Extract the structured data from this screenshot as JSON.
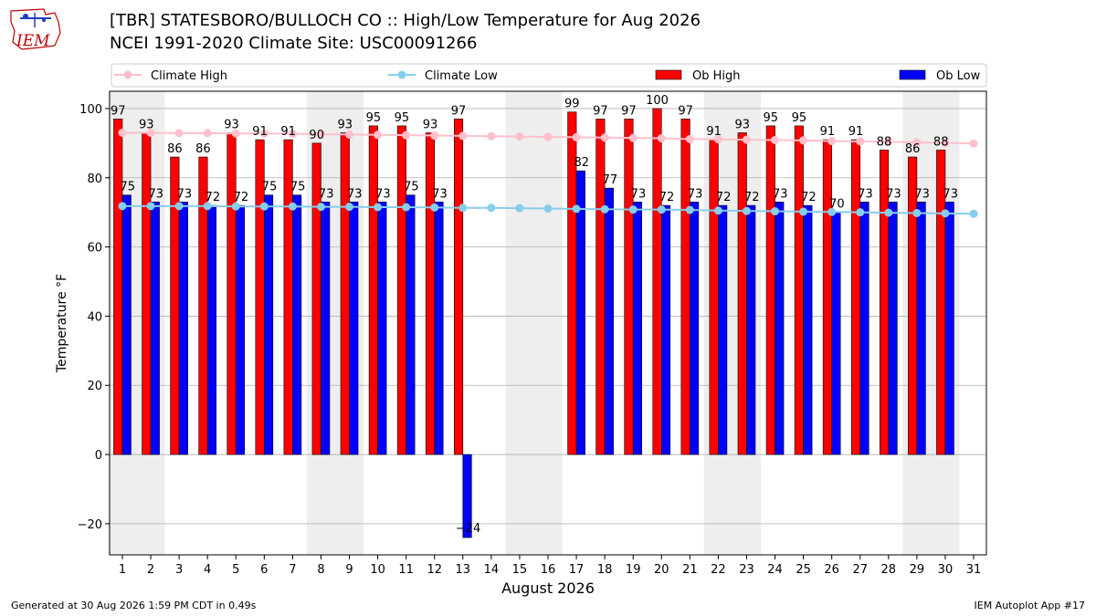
{
  "header": {
    "title": "[TBR] STATESBORO/BULLOCH CO :: High/Low Temperature for Aug 2026",
    "subtitle": "NCEI 1991-2020 Climate Site: USC00091266",
    "logo_text": "IEM"
  },
  "footer": {
    "generated": "Generated at 30 Aug 2026 1:59 PM CDT in 0.49s",
    "app": "IEM Autoplot App #17"
  },
  "colors": {
    "ob_high": "#ff0000",
    "ob_low": "#0000ff",
    "climate_high": "#ffc0cb",
    "climate_low": "#87ceeb",
    "weekend_band": "#eeeeee",
    "grid": "#b0b0b0"
  },
  "chart_data": {
    "type": "bar",
    "xlabel": "August 2026",
    "ylabel": "Temperature °F",
    "ylim": [
      -29,
      105
    ],
    "yticks": [
      -20,
      0,
      20,
      40,
      60,
      80,
      100
    ],
    "ytick_labels": [
      "−20",
      "0",
      "20",
      "40",
      "60",
      "80",
      "100"
    ],
    "x": [
      1,
      2,
      3,
      4,
      5,
      6,
      7,
      8,
      9,
      10,
      11,
      12,
      13,
      14,
      15,
      16,
      17,
      18,
      19,
      20,
      21,
      22,
      23,
      24,
      25,
      26,
      27,
      28,
      29,
      30,
      31
    ],
    "weekend_bands": [
      [
        1,
        2
      ],
      [
        8,
        9
      ],
      [
        15,
        16
      ],
      [
        22,
        23
      ],
      [
        29,
        30
      ]
    ],
    "legend": [
      "Climate High",
      "Climate Low",
      "Ob High",
      "Ob Low"
    ],
    "legend_position": "top",
    "series": [
      {
        "name": "Climate High",
        "kind": "line",
        "values": [
          93,
          93,
          92.9,
          92.9,
          92.8,
          92.8,
          92.7,
          92.6,
          92.5,
          92.4,
          92.3,
          92.2,
          92.1,
          92.0,
          91.9,
          91.8,
          91.7,
          91.6,
          91.5,
          91.4,
          91.2,
          91.1,
          91.0,
          90.9,
          90.8,
          90.6,
          90.5,
          90.4,
          90.2,
          90.1,
          89.9
        ]
      },
      {
        "name": "Climate Low",
        "kind": "line",
        "values": [
          71.8,
          71.8,
          71.8,
          71.8,
          71.7,
          71.7,
          71.7,
          71.6,
          71.6,
          71.5,
          71.5,
          71.4,
          71.3,
          71.3,
          71.2,
          71.1,
          71.0,
          70.9,
          70.8,
          70.8,
          70.7,
          70.5,
          70.4,
          70.3,
          70.2,
          70.1,
          70.0,
          69.9,
          69.8,
          69.7,
          69.6
        ]
      },
      {
        "name": "Ob High",
        "kind": "bar",
        "values": [
          97,
          93,
          86,
          86,
          93,
          91,
          91,
          90,
          93,
          95,
          95,
          93,
          97,
          null,
          null,
          null,
          99,
          97,
          97,
          100,
          97,
          91,
          93,
          95,
          95,
          91,
          91,
          88,
          86,
          88,
          null
        ]
      },
      {
        "name": "Ob Low",
        "kind": "bar",
        "values": [
          75,
          73,
          73,
          72,
          72,
          75,
          75,
          73,
          73,
          73,
          75,
          73,
          -24,
          null,
          null,
          null,
          82,
          77,
          73,
          72,
          73,
          72,
          72,
          73,
          72,
          70,
          73,
          73,
          73,
          73,
          null
        ]
      }
    ],
    "data_labels_high": [
      "97",
      "93",
      "86",
      "86",
      "93",
      "91",
      "91",
      "90",
      "93",
      "95",
      "95",
      "93",
      "97",
      "",
      "",
      "",
      "99",
      "97",
      "97",
      "100",
      "97",
      "91",
      "93",
      "95",
      "95",
      "91",
      "91",
      "88",
      "86",
      "88",
      ""
    ],
    "data_labels_low": [
      "75",
      "73",
      "73",
      "72",
      "72",
      "75",
      "75",
      "73",
      "73",
      "73",
      "75",
      "73",
      "−24",
      "",
      "",
      "",
      "82",
      "77",
      "73",
      "72",
      "73",
      "72",
      "72",
      "73",
      "72",
      "70",
      "73",
      "73",
      "73",
      "73",
      ""
    ]
  }
}
